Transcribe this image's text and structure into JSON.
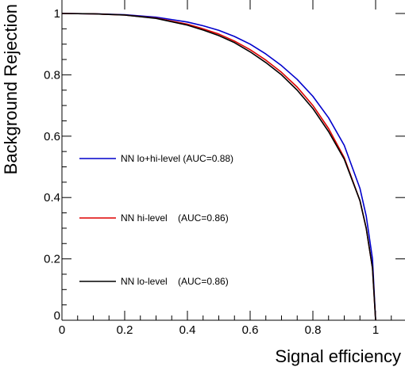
{
  "chart_data": {
    "type": "line",
    "xlabel": "Signal efficiency",
    "ylabel": "Background Rejection",
    "xlim": [
      0,
      1.08
    ],
    "ylim": [
      0,
      1.05
    ],
    "grid": false,
    "legend_placement": "left-middle",
    "x_ticks": [
      0,
      0.2,
      0.4,
      0.6,
      0.8,
      1
    ],
    "x_tick_labels": [
      "0",
      "0.2",
      "0.4",
      "0.6",
      "0.8",
      "1"
    ],
    "y_ticks": [
      0,
      0.2,
      0.4,
      0.6,
      0.8,
      1
    ],
    "y_tick_labels": [
      "0",
      "0.2",
      "0.4",
      "0.6",
      "0.8",
      "1"
    ],
    "series": [
      {
        "name": "NN lo+hi-level (AUC=0.88)",
        "legend_label": "NN lo+hi-level (AUC=0.88)",
        "color": "#0000cc",
        "x": [
          0,
          0.1,
          0.2,
          0.3,
          0.4,
          0.45,
          0.5,
          0.55,
          0.6,
          0.65,
          0.7,
          0.75,
          0.8,
          0.85,
          0.9,
          0.95,
          0.97,
          0.99,
          1.0
        ],
        "y": [
          1.0,
          0.999,
          0.996,
          0.988,
          0.972,
          0.96,
          0.945,
          0.925,
          0.9,
          0.868,
          0.83,
          0.785,
          0.73,
          0.66,
          0.57,
          0.43,
          0.34,
          0.2,
          0.0
        ]
      },
      {
        "name": "NN hi-level    (AUC=0.86)",
        "legend_label": "NN hi-level    (AUC=0.86)",
        "color": "#dd0000",
        "x": [
          0,
          0.1,
          0.2,
          0.3,
          0.4,
          0.45,
          0.5,
          0.55,
          0.6,
          0.65,
          0.7,
          0.75,
          0.8,
          0.85,
          0.9,
          0.95,
          0.97,
          0.99,
          1.0
        ],
        "y": [
          1.0,
          0.999,
          0.995,
          0.985,
          0.965,
          0.95,
          0.933,
          0.91,
          0.882,
          0.848,
          0.808,
          0.76,
          0.7,
          0.625,
          0.53,
          0.39,
          0.3,
          0.17,
          0.0
        ]
      },
      {
        "name": "NN lo-level    (AUC=0.86)",
        "legend_label": "NN lo-level    (AUC=0.86)",
        "color": "#000000",
        "x": [
          0,
          0.1,
          0.2,
          0.3,
          0.4,
          0.45,
          0.5,
          0.55,
          0.6,
          0.65,
          0.7,
          0.75,
          0.8,
          0.85,
          0.9,
          0.95,
          0.97,
          0.99,
          1.0
        ],
        "y": [
          1.0,
          0.999,
          0.995,
          0.984,
          0.962,
          0.946,
          0.928,
          0.905,
          0.875,
          0.84,
          0.8,
          0.75,
          0.69,
          0.615,
          0.525,
          0.39,
          0.3,
          0.17,
          0.0
        ]
      }
    ]
  }
}
